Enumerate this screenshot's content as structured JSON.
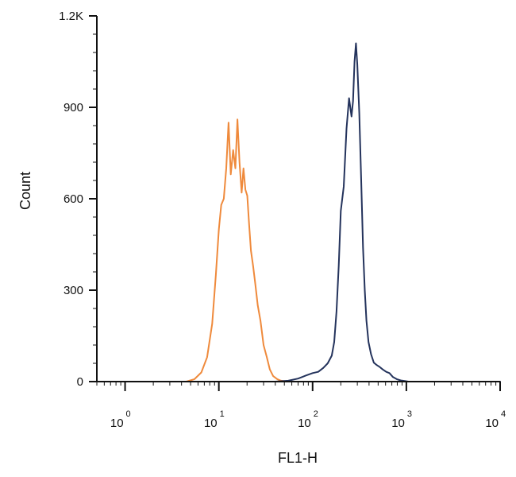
{
  "chart_data": {
    "type": "line",
    "title": "",
    "xlabel": "FL1-H",
    "ylabel": "Count",
    "x_scale": "log",
    "xlim": [
      0.5,
      10000
    ],
    "ylim": [
      0,
      1200
    ],
    "x_ticks": [
      {
        "value": 1,
        "base": "10",
        "exp": "0"
      },
      {
        "value": 10,
        "base": "10",
        "exp": "1"
      },
      {
        "value": 100,
        "base": "10",
        "exp": "2"
      },
      {
        "value": 1000,
        "base": "10",
        "exp": "3"
      },
      {
        "value": 10000,
        "base": "10",
        "exp": "4"
      }
    ],
    "y_ticks": [
      {
        "value": 0,
        "label": "0"
      },
      {
        "value": 300,
        "label": "300"
      },
      {
        "value": 600,
        "label": "600"
      },
      {
        "value": 900,
        "label": "900"
      },
      {
        "value": 1200,
        "label": "1.2K"
      }
    ],
    "grid": false,
    "legend": "none",
    "series": [
      {
        "color": "#ef8a3c",
        "x": [
          0.5,
          4.5,
          5.5,
          6.5,
          7.5,
          8.5,
          9.3,
          10.0,
          10.6,
          11.3,
          12.0,
          12.7,
          13.4,
          14.2,
          15.0,
          15.8,
          16.6,
          17.5,
          18.3,
          19.2,
          20.1,
          21.0,
          22.0,
          23.2,
          24.5,
          26.0,
          27.8,
          30.0,
          32.5,
          35.0,
          38.0,
          42.0,
          46.0,
          52.0,
          60.0,
          10000
        ],
        "y": [
          0,
          0,
          8,
          30,
          80,
          190,
          350,
          500,
          580,
          600,
          700,
          850,
          680,
          760,
          700,
          860,
          720,
          620,
          700,
          630,
          610,
          520,
          430,
          380,
          320,
          250,
          200,
          120,
          80,
          40,
          18,
          8,
          3,
          1,
          0,
          0
        ]
      },
      {
        "color": "#24335c",
        "x": [
          0.5,
          40,
          55,
          70,
          85,
          100,
          115,
          130,
          145,
          160,
          170,
          180,
          190,
          200,
          215,
          230,
          245,
          260,
          270,
          280,
          290,
          300,
          315,
          330,
          345,
          360,
          375,
          395,
          420,
          450,
          480,
          520,
          560,
          610,
          660,
          720,
          790,
          870,
          960,
          1050,
          1150,
          10000
        ],
        "y": [
          0,
          0,
          3,
          10,
          20,
          28,
          32,
          45,
          60,
          85,
          130,
          230,
          380,
          560,
          640,
          830,
          930,
          870,
          920,
          1050,
          1110,
          1040,
          880,
          660,
          440,
          300,
          200,
          130,
          90,
          62,
          55,
          48,
          40,
          32,
          28,
          15,
          8,
          4,
          2,
          0,
          0,
          0
        ]
      }
    ]
  }
}
